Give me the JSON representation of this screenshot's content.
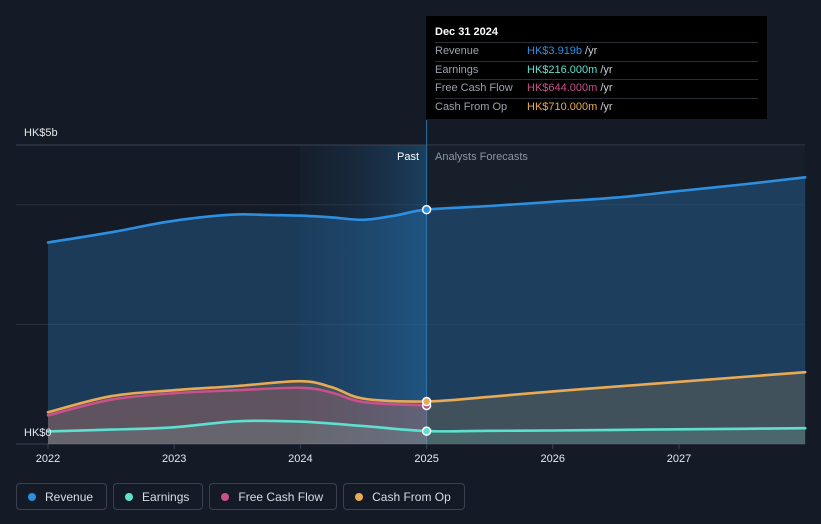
{
  "chart_data": {
    "type": "line",
    "title": "",
    "y_axis_labels": [
      "HK$5b",
      "HK$0"
    ],
    "ylim": [
      0,
      5000
    ],
    "x_tick_labels": [
      "2022",
      "2023",
      "2024",
      "2025",
      "2026",
      "2027"
    ],
    "section_labels": {
      "past": "Past",
      "forecast": "Analysts Forecasts"
    },
    "past_forecast_boundary": 2025.0,
    "series": [
      {
        "name": "Revenue",
        "color": "#2d8fe0",
        "unit": "HK$m",
        "x": [
          2022.0,
          2022.5,
          2022.9,
          2023.2,
          2023.5,
          2023.75,
          2024.0,
          2024.25,
          2024.5,
          2024.75,
          2025.0,
          2025.5,
          2026.0,
          2026.5,
          2027.0,
          2027.5,
          2028.0
        ],
        "values": [
          3370,
          3540,
          3700,
          3790,
          3840,
          3830,
          3820,
          3790,
          3750,
          3820,
          3919,
          3980,
          4050,
          4120,
          4230,
          4340,
          4460
        ]
      },
      {
        "name": "Earnings",
        "color": "#5ee0d0",
        "unit": "HK$m",
        "x": [
          2022.0,
          2022.5,
          2023.0,
          2023.5,
          2024.0,
          2024.5,
          2025.0,
          2025.5,
          2026.0,
          2026.5,
          2027.0,
          2027.5,
          2028.0
        ],
        "values": [
          210,
          240,
          280,
          380,
          375,
          300,
          216,
          220,
          225,
          235,
          245,
          255,
          265
        ]
      },
      {
        "name": "Free Cash Flow",
        "color": "#c9508a",
        "unit": "HK$m",
        "x": [
          2022.0,
          2022.5,
          2023.0,
          2023.5,
          2024.0,
          2024.25,
          2024.5,
          2025.0
        ],
        "values": [
          480,
          740,
          850,
          900,
          940,
          860,
          700,
          644
        ]
      },
      {
        "name": "Cash From Op",
        "color": "#e9aa55",
        "unit": "HK$m",
        "x": [
          2022.0,
          2022.5,
          2023.0,
          2023.5,
          2024.0,
          2024.25,
          2024.5,
          2025.0,
          2025.5,
          2026.0,
          2026.5,
          2027.0,
          2027.5,
          2028.0
        ],
        "values": [
          530,
          800,
          900,
          970,
          1050,
          950,
          760,
          710,
          790,
          880,
          960,
          1040,
          1120,
          1200
        ]
      }
    ]
  },
  "tooltip": {
    "date": "Dec 31 2024",
    "rows": [
      {
        "label": "Revenue",
        "value": "HK$3.919b",
        "unit": "/yr",
        "color": "#2d8fe0"
      },
      {
        "label": "Earnings",
        "value": "HK$216.000m",
        "unit": "/yr",
        "color": "#5ee0d0"
      },
      {
        "label": "Free Cash Flow",
        "value": "HK$644.000m",
        "unit": "/yr",
        "color": "#c9508a"
      },
      {
        "label": "Cash From Op",
        "value": "HK$710.000m",
        "unit": "/yr",
        "color": "#e9aa55"
      }
    ]
  },
  "legend": [
    {
      "label": "Revenue",
      "color": "#2d8fe0"
    },
    {
      "label": "Earnings",
      "color": "#5ee0d0"
    },
    {
      "label": "Free Cash Flow",
      "color": "#c9508a"
    },
    {
      "label": "Cash From Op",
      "color": "#e9aa55"
    }
  ]
}
